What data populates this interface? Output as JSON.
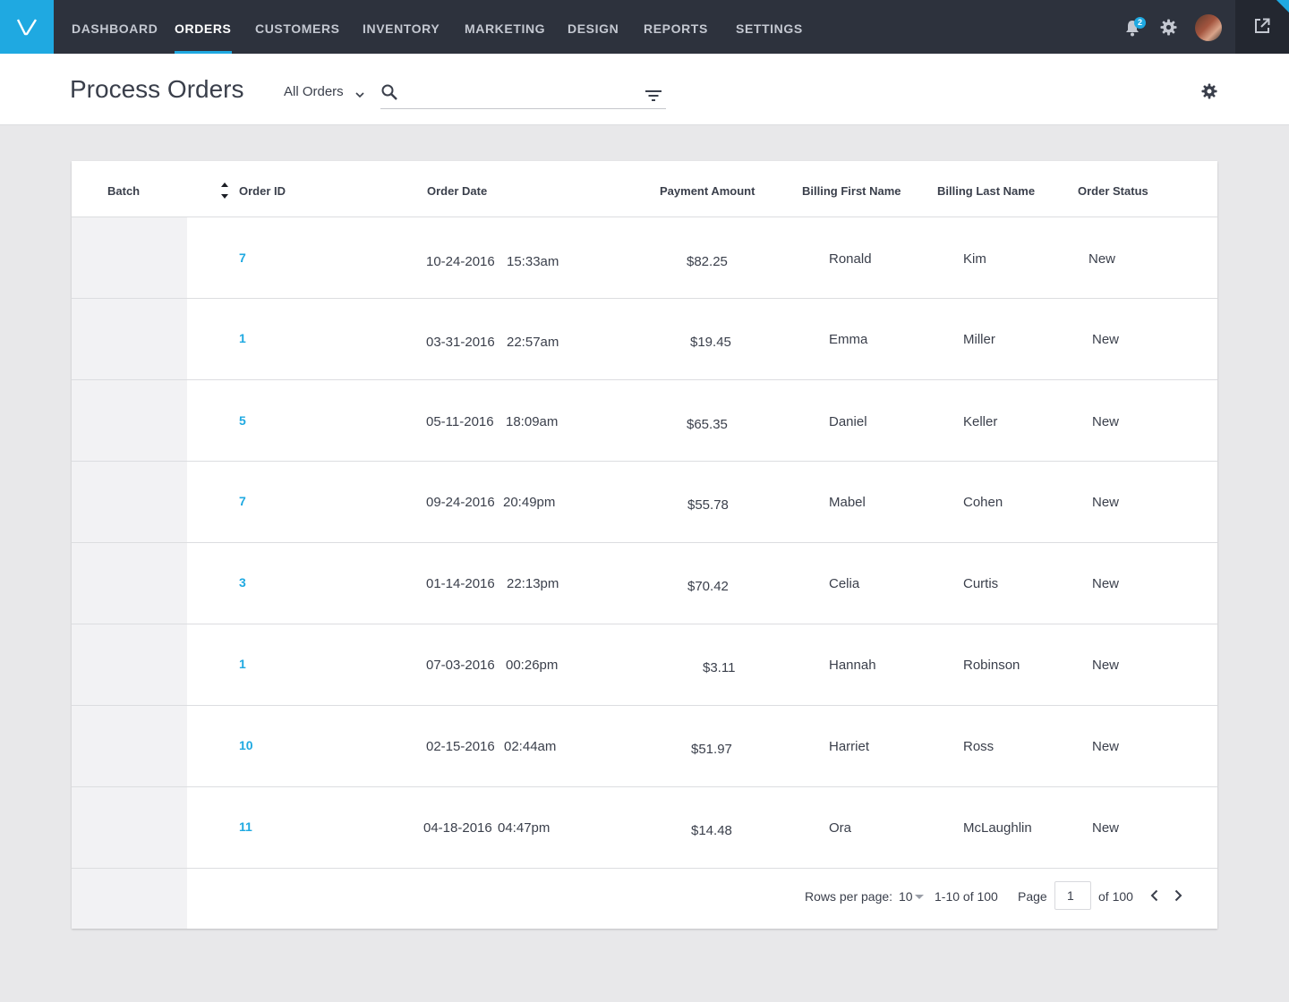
{
  "nav": {
    "items": [
      "DASHBOARD",
      "ORDERS",
      "CUSTOMERS",
      "INVENTORY",
      "MARKETING",
      "DESIGN",
      "REPORTS",
      "SETTINGS"
    ],
    "active": "ORDERS",
    "notification_count": "2",
    "brand_color": "#1fa9e1",
    "logo_icon": "v-logo-icon",
    "icons": [
      "bell-icon",
      "gear-icon",
      "avatar",
      "external-link-icon"
    ]
  },
  "header": {
    "title": "Process Orders",
    "filter_label": "All Orders",
    "search_value": "",
    "search_placeholder": ""
  },
  "table": {
    "columns": {
      "batch": "Batch",
      "order_id": "Order ID",
      "order_date": "Order Date",
      "payment": "Payment Amount",
      "first_name": "Billing First Name",
      "last_name": "Billing Last Name",
      "status": "Order Status"
    },
    "rows": [
      {
        "order_id": "7",
        "date": "10-24-2016",
        "time": "15:33am",
        "amount": "$82.25",
        "first": "Ronald",
        "last": "Kim",
        "status": "New"
      },
      {
        "order_id": "1",
        "date": "03-31-2016",
        "time": "22:57am",
        "amount": "$19.45",
        "first": "Emma",
        "last": "Miller",
        "status": "New"
      },
      {
        "order_id": "5",
        "date": "05-11-2016",
        "time": "18:09am",
        "amount": "$65.35",
        "first": "Daniel",
        "last": "Keller",
        "status": "New"
      },
      {
        "order_id": "7",
        "date": "09-24-2016",
        "time": "20:49pm",
        "amount": "$55.78",
        "first": "Mabel",
        "last": "Cohen",
        "status": "New"
      },
      {
        "order_id": "3",
        "date": "01-14-2016",
        "time": "22:13pm",
        "amount": "$70.42",
        "first": "Celia",
        "last": "Curtis",
        "status": "New"
      },
      {
        "order_id": "1",
        "date": "07-03-2016",
        "time": "00:26pm",
        "amount": "$3.11",
        "first": "Hannah",
        "last": "Robinson",
        "status": "New"
      },
      {
        "order_id": "10",
        "date": "02-15-2016",
        "time": "02:44am",
        "amount": "$51.97",
        "first": "Harriet",
        "last": "Ross",
        "status": "New"
      },
      {
        "order_id": "11",
        "date": "04-18-2016",
        "time": "04:47pm",
        "amount": "$14.48",
        "first": "Ora",
        "last": "McLaughlin",
        "status": "New"
      }
    ]
  },
  "pagination": {
    "rows_per_page_label": "Rows per page:",
    "rows_per_page": "10",
    "range": "1-10 of 100",
    "page_label": "Page",
    "page_value": "1",
    "of_label": "of 100"
  }
}
